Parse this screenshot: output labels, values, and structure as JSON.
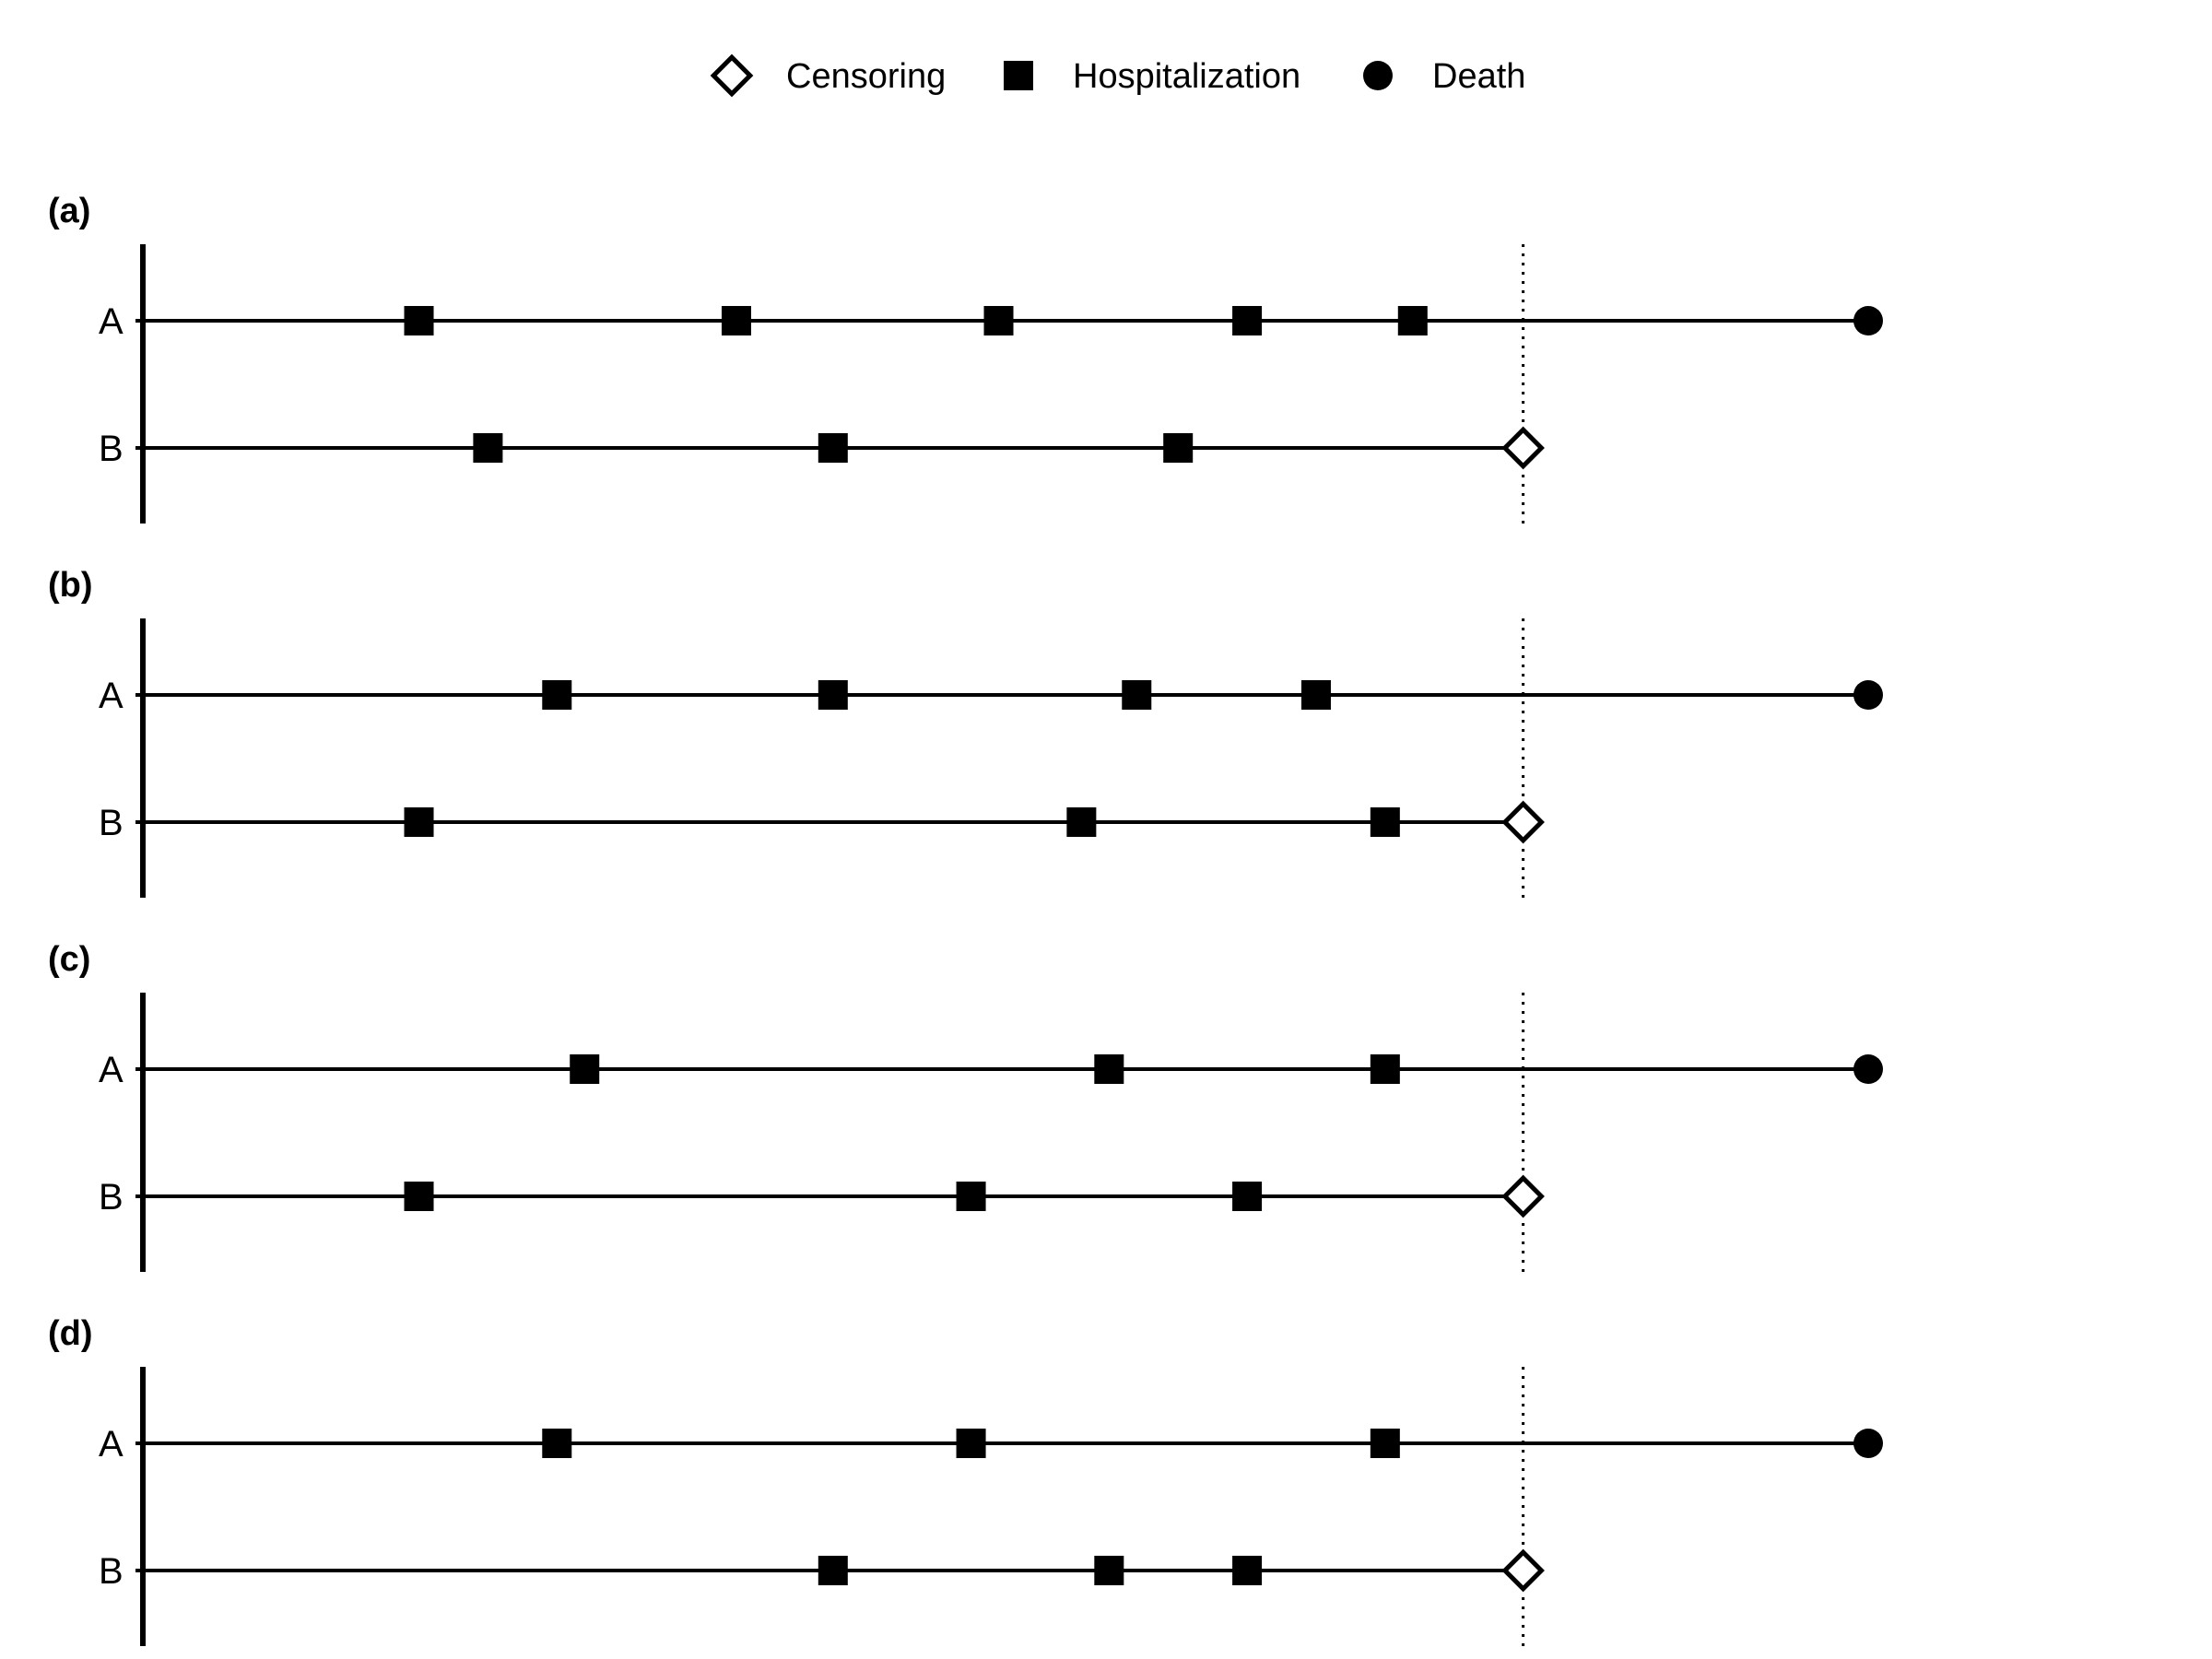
{
  "chart_data": {
    "type": "scatter",
    "subtype": "event-timeline",
    "legend": {
      "placement": "top-center",
      "items": [
        {
          "key": "censoring",
          "label": "Censoring",
          "marker": "open-diamond"
        },
        {
          "key": "hospitalization",
          "label": "Hospitalization",
          "marker": "filled-square"
        },
        {
          "key": "death",
          "label": "Death",
          "marker": "filled-circle"
        }
      ]
    },
    "xlim": [
      0,
      12.5
    ],
    "reference_line": {
      "x": 10,
      "style": "dotted"
    },
    "panels": [
      {
        "label": "(a)",
        "rows": [
          {
            "name": "A",
            "hospitalizations": [
              2,
              4.3,
              6.2,
              8,
              9.2
            ],
            "end": {
              "x": 12.5,
              "type": "death"
            }
          },
          {
            "name": "B",
            "hospitalizations": [
              2.5,
              5,
              7.5
            ],
            "end": {
              "x": 10,
              "type": "censoring"
            }
          }
        ]
      },
      {
        "label": "(b)",
        "rows": [
          {
            "name": "A",
            "hospitalizations": [
              3,
              5,
              7.2,
              8.5
            ],
            "end": {
              "x": 12.5,
              "type": "death"
            }
          },
          {
            "name": "B",
            "hospitalizations": [
              2,
              6.8,
              9
            ],
            "end": {
              "x": 10,
              "type": "censoring"
            }
          }
        ]
      },
      {
        "label": "(c)",
        "rows": [
          {
            "name": "A",
            "hospitalizations": [
              3.2,
              7,
              9
            ],
            "end": {
              "x": 12.5,
              "type": "death"
            }
          },
          {
            "name": "B",
            "hospitalizations": [
              2,
              6,
              8
            ],
            "end": {
              "x": 10,
              "type": "censoring"
            }
          }
        ]
      },
      {
        "label": "(d)",
        "rows": [
          {
            "name": "A",
            "hospitalizations": [
              3,
              6,
              9
            ],
            "end": {
              "x": 12.5,
              "type": "death"
            }
          },
          {
            "name": "B",
            "hospitalizations": [
              5,
              7,
              8
            ],
            "end": {
              "x": 10,
              "type": "censoring"
            }
          }
        ]
      }
    ]
  }
}
